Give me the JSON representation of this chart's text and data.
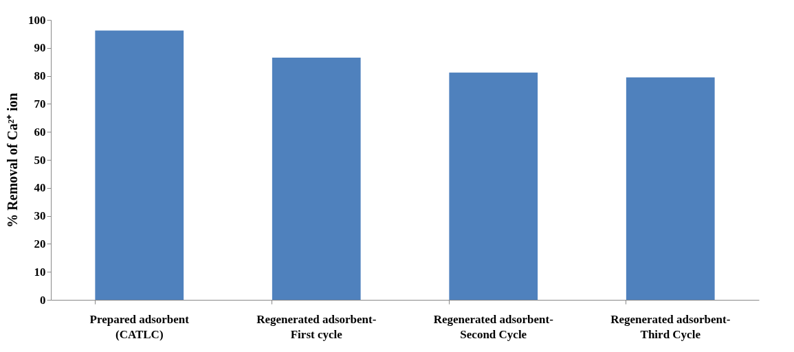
{
  "chart_data": {
    "type": "bar",
    "ylabel": "% Removal of Ca²⁺ ion",
    "categories": [
      "Prepared adsorbent\n(CATLC)",
      "Regenerated adsorbent-\nFirst cycle",
      "Regenerated adsorbent-\nSecond Cycle",
      "Regenerated adsorbent-\nThird Cycle"
    ],
    "values": [
      96.2,
      86.5,
      81.2,
      79.5
    ],
    "color": "#4f81bd",
    "ylim": [
      0,
      100
    ],
    "yticks": [
      0,
      10,
      20,
      30,
      40,
      50,
      60,
      70,
      80,
      90,
      100
    ],
    "grid": false
  }
}
